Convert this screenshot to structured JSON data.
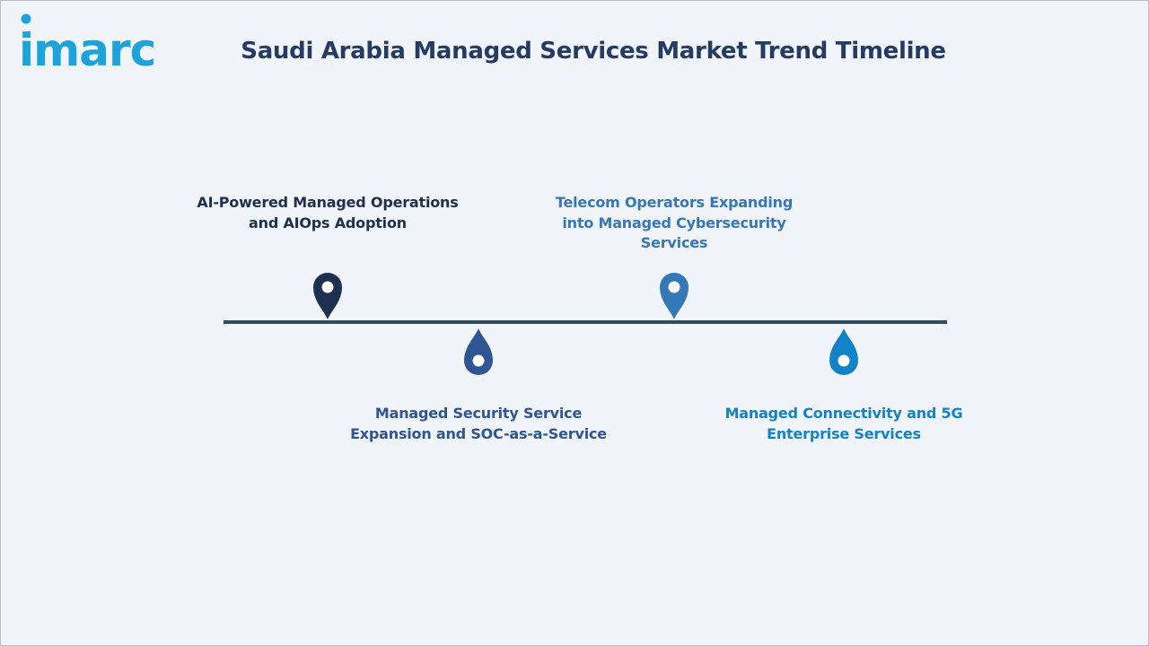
{
  "logo": {
    "text": "imarc"
  },
  "title": "Saudi Arabia Managed Services Market Trend Timeline",
  "milestones": [
    {
      "text": "AI-Powered Managed Operations and AIOps Adoption",
      "color": "#1e3050",
      "side": "above"
    },
    {
      "text": "Managed Security Service Expansion and SOC-as-a-Service",
      "color": "#2f5693",
      "side": "below"
    },
    {
      "text": "Telecom Operators Expanding into Managed Cybersecurity Services",
      "color": "#3478b8",
      "side": "above"
    },
    {
      "text": "Managed Connectivity and 5G Enterprise Services",
      "color": "#1383c8",
      "side": "below"
    }
  ],
  "colors": {
    "brand": "#1ca3dc",
    "title": "#243b63",
    "line": "#2f4c63",
    "background": "#f1f4f9"
  }
}
